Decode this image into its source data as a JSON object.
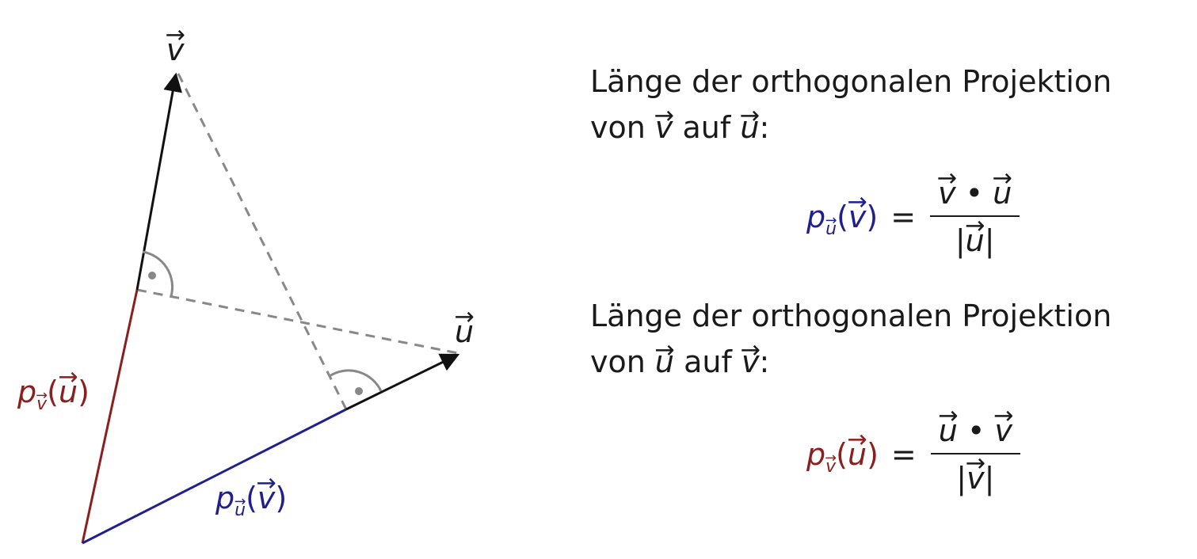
{
  "colors": {
    "projection_u": "#1f1f8f",
    "projection_v": "#8b1e1e",
    "vector": "#111111",
    "helper": "#888888"
  },
  "labels": {
    "v": "v",
    "u": "u",
    "p": "p",
    "sub_u": "u",
    "sub_v": "v"
  },
  "text": {
    "heading1_line1": "Länge der orthogonalen Projektion",
    "heading1_von": "von",
    "heading1_v": "v",
    "heading1_auf": "auf",
    "heading1_u": "u",
    "heading2_line1": "Länge der orthogonalen Projektion",
    "heading2_von": "von",
    "heading2_u": "u",
    "heading2_auf": "auf",
    "heading2_v": "v",
    "colon": ":"
  },
  "formula1": {
    "p": "p",
    "sub": "u",
    "arg": "v",
    "eq": "=",
    "num_a": "v",
    "dot": "•",
    "num_b": "u",
    "den": "u"
  },
  "formula2": {
    "p": "p",
    "sub": "v",
    "arg": "u",
    "eq": "=",
    "num_a": "u",
    "dot": "•",
    "num_b": "v",
    "den": "v"
  }
}
